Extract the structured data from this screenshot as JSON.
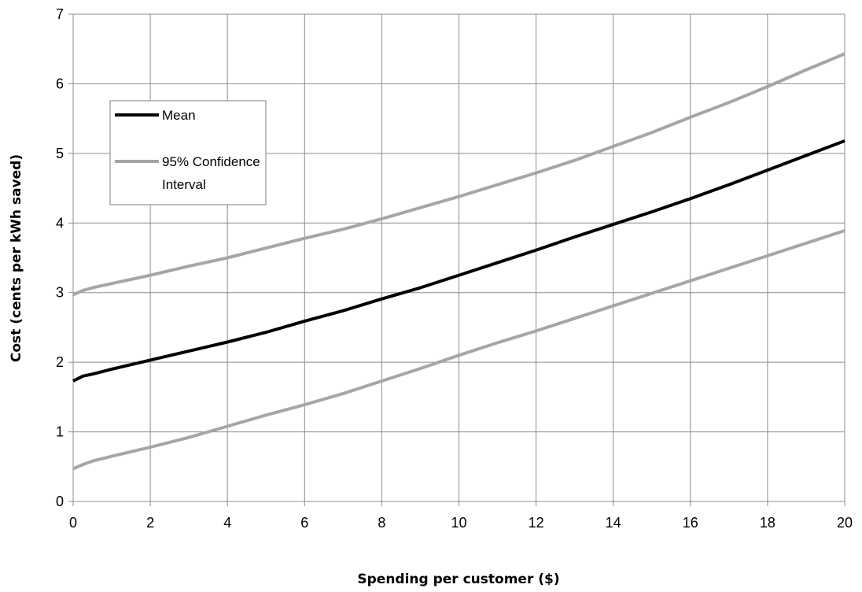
{
  "chart_data": {
    "type": "line",
    "xlabel": "Spending per customer ($)",
    "ylabel": "Cost (cents per kWh saved)",
    "xlim": [
      0,
      20
    ],
    "ylim": [
      0,
      7
    ],
    "xticks": [
      0,
      2,
      4,
      6,
      8,
      10,
      12,
      14,
      16,
      18,
      20
    ],
    "yticks": [
      0,
      1,
      2,
      3,
      4,
      5,
      6,
      7
    ],
    "grid": true,
    "legend_position": "top-left",
    "series": [
      {
        "name": "Mean",
        "color": "#000000",
        "x": [
          0,
          0.25,
          0.5,
          1,
          2,
          3,
          4,
          5,
          6,
          7,
          8,
          9,
          10,
          11,
          12,
          13,
          14,
          15,
          16,
          17,
          18,
          19,
          20
        ],
        "y": [
          1.73,
          1.8,
          1.83,
          1.9,
          2.03,
          2.16,
          2.29,
          2.43,
          2.59,
          2.74,
          2.91,
          3.07,
          3.25,
          3.43,
          3.61,
          3.8,
          3.98,
          4.16,
          4.35,
          4.55,
          4.76,
          4.97,
          5.18
        ]
      },
      {
        "name": "95% Confidence Interval",
        "color": "#a6a6a6",
        "x": [
          0,
          0.25,
          0.5,
          1,
          2,
          3,
          4,
          5,
          6,
          7,
          8,
          9,
          10,
          11,
          12,
          13,
          14,
          15,
          16,
          17,
          18,
          19,
          20
        ],
        "y": [
          2.97,
          3.03,
          3.07,
          3.13,
          3.25,
          3.38,
          3.5,
          3.64,
          3.78,
          3.91,
          4.06,
          4.22,
          4.38,
          4.55,
          4.72,
          4.9,
          5.1,
          5.3,
          5.52,
          5.73,
          5.96,
          6.2,
          6.43
        ]
      },
      {
        "name": "",
        "color": "#a6a6a6",
        "x": [
          0,
          0.25,
          0.5,
          1,
          2,
          3,
          4,
          5,
          6,
          7,
          8,
          9,
          10,
          11,
          12,
          13,
          14,
          15,
          16,
          17,
          18,
          19,
          20
        ],
        "y": [
          0.47,
          0.53,
          0.58,
          0.65,
          0.78,
          0.92,
          1.08,
          1.24,
          1.39,
          1.55,
          1.73,
          1.91,
          2.1,
          2.28,
          2.45,
          2.63,
          2.81,
          2.99,
          3.17,
          3.35,
          3.53,
          3.71,
          3.89
        ]
      }
    ],
    "legend": {
      "entries": [
        {
          "label_lines": [
            "Mean"
          ],
          "color": "#000000"
        },
        {
          "label_lines": [
            "95% Confidence",
            "Interval"
          ],
          "color": "#a6a6a6"
        }
      ]
    }
  }
}
